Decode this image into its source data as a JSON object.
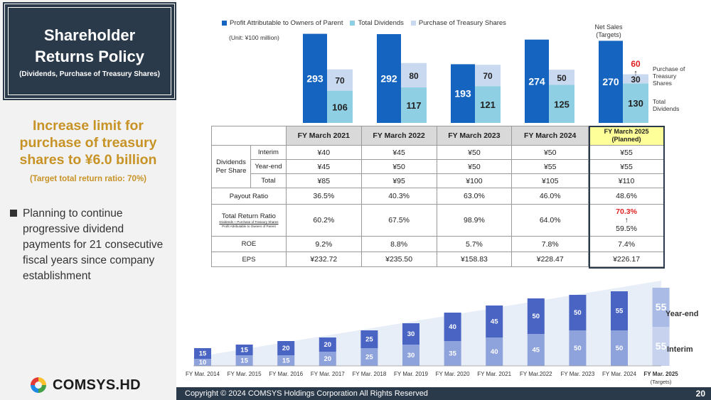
{
  "left": {
    "title": "Shareholder Returns Policy",
    "subtitle": "(Dividends, Purchase of Treasury Shares)",
    "headline": "Increase limit for purchase of treasury shares to ¥6.0 billion",
    "headline_sub": "(Target total return ratio: 70%)",
    "bullet": "Planning to continue progressive dividend payments for 21 consecutive fiscal years since company establishment",
    "logo": "COMSYS.HD"
  },
  "top_chart_labels": {
    "unit": "(Unit: ¥100 million)",
    "net_sales": "Net Sales (Targets)",
    "side_purchase": "Purchase of Treasury Shares",
    "side_dividends": "Total Dividends",
    "target_60": "60",
    "arrow": "↑"
  },
  "table": {
    "headers": [
      "FY March 2021",
      "FY March 2022",
      "FY March 2023",
      "FY March 2024"
    ],
    "planned_header_1": "FY March 2025",
    "planned_header_2": "(Planned)",
    "dps_label": "Dividends Per Share",
    "interim_label": "Interim",
    "yearend_label": "Year-end",
    "total_label": "Total",
    "payout_label": "Payout Ratio",
    "trr_label": "Total Return Ratio",
    "trr_formula_top": "Dividends + Purchase of Treasury Shares",
    "trr_formula_bottom": "Profit Attributable to Owners of Parent",
    "roe_label": "ROE",
    "eps_label": "EPS",
    "interim": [
      "¥40",
      "¥45",
      "¥50",
      "¥50",
      "¥55"
    ],
    "yearend": [
      "¥45",
      "¥50",
      "¥50",
      "¥55",
      "¥55"
    ],
    "total": [
      "¥85",
      "¥95",
      "¥100",
      "¥105",
      "¥110"
    ],
    "payout": [
      "36.5%",
      "40.3%",
      "63.0%",
      "46.0%",
      "48.6%"
    ],
    "trr": [
      "60.2%",
      "67.5%",
      "98.9%",
      "64.0%"
    ],
    "trr_target": "70.3%",
    "trr_arrow": "↑",
    "trr_planned": "59.5%",
    "roe": [
      "9.2%",
      "8.8%",
      "5.7%",
      "7.8%",
      "7.4%"
    ],
    "eps": [
      "¥232.72",
      "¥235.50",
      "¥158.83",
      "¥228.47",
      "¥226.17"
    ]
  },
  "bottom_labels": {
    "yearend": "Year-end",
    "interim": "Interim",
    "last_sub": "(Targets)"
  },
  "footer": {
    "copyright": "Copyright © 2024 COMSYS Holdings Corporation All Rights Reserved",
    "page": "20"
  },
  "colors": {
    "profit": "#1565c0",
    "dividends": "#8fcfe3",
    "treasury": "#c9d9f0",
    "interim_bar": "#8ea2db",
    "yearend_bar": "#4a64c4",
    "dark": "#2b3a4a",
    "accent": "#c89326"
  },
  "chart_data": [
    {
      "type": "bar",
      "title": "",
      "categories": [
        "FY March 2021",
        "FY March 2022",
        "FY March 2023",
        "FY March 2024",
        "FY March 2025"
      ],
      "series": [
        {
          "name": "Profit Attributable to Owners of Parent",
          "values": [
            293,
            292,
            193,
            274,
            270
          ]
        },
        {
          "name": "Total Dividends",
          "values": [
            106,
            117,
            121,
            125,
            130
          ]
        },
        {
          "name": "Purchase of Treasury Shares",
          "values": [
            70,
            80,
            70,
            50,
            30
          ]
        }
      ],
      "ylabel": "",
      "unit": "(Unit: ¥100 million)"
    },
    {
      "type": "bar",
      "title": "",
      "categories": [
        "FY Mar. 2014",
        "FY Mar. 2015",
        "FY Mar. 2016",
        "FY Mar. 2017",
        "FY Mar. 2018",
        "FY Mar. 2019",
        "FY Mar. 2020",
        "FY Mar. 2021",
        "FY Mar.2022",
        "FY Mar. 2023",
        "FY Mar. 2024",
        "FY Mar. 2025"
      ],
      "series": [
        {
          "name": "Interim",
          "values": [
            10,
            15,
            15,
            20,
            25,
            30,
            35,
            40,
            45,
            50,
            50,
            55
          ]
        },
        {
          "name": "Year-end",
          "values": [
            15,
            15,
            20,
            20,
            25,
            30,
            40,
            45,
            50,
            50,
            55,
            55
          ]
        }
      ]
    }
  ]
}
